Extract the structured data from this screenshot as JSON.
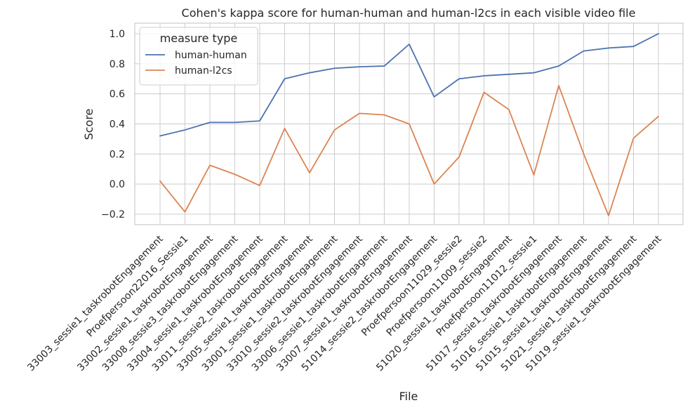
{
  "chart_data": {
    "type": "line",
    "title": "Cohen's kappa score for human-human and human-l2cs in each visible video file",
    "xlabel": "File",
    "ylabel": "Score",
    "ylim": [
      -0.27,
      1.07
    ],
    "yticks": [
      "−0.2",
      "0.0",
      "0.2",
      "0.4",
      "0.6",
      "0.8",
      "1.0"
    ],
    "ytick_values": [
      -0.2,
      0.0,
      0.2,
      0.4,
      0.6,
      0.8,
      1.0
    ],
    "grid": true,
    "categories": [
      "33003_sessie1_taskrobotEngagement",
      "Proefpersoon22016_Sessie1",
      "33002_sessie1_taskrobotEngagement",
      "33008_sessie3_taskrobotEngagement",
      "33004_sessie1_taskrobotEngagement",
      "33011_sessie2_taskrobotEngagement",
      "33005_sessie1_taskrobotEngagement",
      "33001_sessie1_taskrobotEngagement",
      "33010_sessie2_taskrobotEngagement",
      "33006_sessie1_taskrobotEngagement",
      "33007_sessie1_taskrobotEngagement",
      "51014_sessie2_taskrobotEngagement",
      "Proefpersoon11029_sessie2",
      "Proefpersoon11009_sessie2",
      "51020_sessie1_taskrobotEngagement",
      "Proefpersoon11012_sessie1",
      "51017_sessie1_taskrobotEngagement",
      "51016_sessie1_taskrobotEngagement",
      "51015_sessie1_taskrobotEngagement",
      "51021_sessie1_taskrobotEngagement",
      "51019_sessie1_taskrobotEngagement"
    ],
    "legend": {
      "title": "measure type",
      "placement": "upper-left"
    },
    "series": [
      {
        "name": "human-human",
        "color": "#4c72b0",
        "values": [
          0.32,
          0.36,
          0.41,
          0.41,
          0.42,
          0.7,
          0.74,
          0.77,
          0.78,
          0.785,
          0.93,
          0.58,
          0.7,
          0.72,
          0.73,
          0.74,
          0.785,
          0.885,
          0.905,
          0.915,
          1.0
        ]
      },
      {
        "name": "human-l2cs",
        "color": "#dd8452",
        "values": [
          0.02,
          -0.185,
          0.125,
          0.065,
          -0.01,
          0.37,
          0.075,
          0.36,
          0.47,
          0.46,
          0.4,
          0.0,
          0.18,
          0.61,
          0.495,
          0.06,
          0.655,
          0.2,
          -0.21,
          0.305,
          0.45
        ]
      }
    ]
  }
}
